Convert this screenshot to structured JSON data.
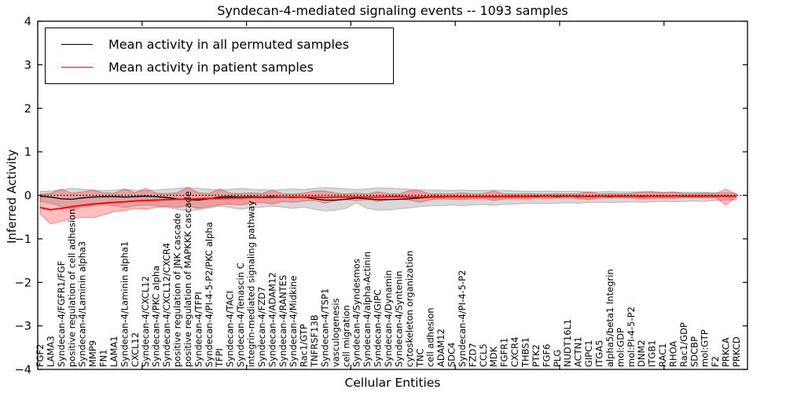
{
  "title": "Syndecan-4-mediated signaling events -- 1093 samples",
  "axes": {
    "ylabel": "Inferred Activity",
    "xlabel": "Cellular Entities",
    "yticks": [
      {
        "v": 4,
        "label": "4"
      },
      {
        "v": 3,
        "label": "3"
      },
      {
        "v": 2,
        "label": "2"
      },
      {
        "v": 1,
        "label": "1"
      },
      {
        "v": 0,
        "label": "0"
      },
      {
        "v": -1,
        "label": "−1"
      },
      {
        "v": -2,
        "label": "−2"
      },
      {
        "v": -3,
        "label": "−3"
      },
      {
        "v": -4,
        "label": "−4"
      }
    ]
  },
  "legend": {
    "entries": [
      {
        "label": "Mean activity in all permuted samples",
        "color": "#000000"
      },
      {
        "label": "Mean activity in patient samples",
        "color": "#ff0000"
      }
    ]
  },
  "chart_data": {
    "type": "line",
    "title": "Syndecan-4-mediated signaling events -- 1093 samples",
    "xlabel": "Cellular Entities",
    "ylabel": "Inferred Activity",
    "ylim": [
      -4,
      4
    ],
    "grid": false,
    "legend_position": "upper left",
    "zero_line": 0,
    "categories": [
      "FGF2",
      "LAMA3",
      "Syndecan-4/FGFR1/FGF",
      "positive regulation of cell adhesion",
      "Syndecan-4/Laminin alpha3",
      "MMP9",
      "FN1",
      "LAMA1",
      "Syndecan-4/Laminin alpha1",
      "CXCL12",
      "Syndecan-4/CXCL12",
      "Syndecan-4/PKC alpha",
      "Syndecan-4/CXCL12/CXCR4",
      "positive regulation of JNK cascade",
      "positive regulation of MAPKKK cascade",
      "Syndecan-4/TFPI",
      "Syndecan-4/PI-4-5-P2/PKC alpha",
      "TFPI",
      "Syndecan-4/TACI",
      "Syndecan-4/Tenascin C",
      "integrin-mediated signaling pathway",
      "Syndecan-4/FZD7",
      "Syndecan-4/ADAM12",
      "Syndecan-4/RANTES",
      "Syndecan-4/Midkine",
      "Rac1/GTP",
      "TNFRSF13B",
      "Syndecan-4/TSP1",
      "vasculogenesis",
      "cell migration",
      "Syndecan-4/Syndesmos",
      "Syndecan-4/alpha-Actinin",
      "Syndecan-4/GIPC",
      "Syndecan-4/Dynamin",
      "Syndecan-4/Syntenin",
      "cytoskeleton organization",
      "TNC",
      "cell adhesion",
      "ADAM12",
      "SDC4",
      "Syndecan-4/PI-4-5-P2",
      "FZD7",
      "CCL5",
      "MDK",
      "FGFR1",
      "CXCR4",
      "THBS1",
      "PTK2",
      "FGF6",
      "PLG",
      "NUDT16L1",
      "ACTN1",
      "GIPC1",
      "ITGA5",
      "alpha5/beta1 Integrin",
      "mol:GDP",
      "mol:PI-4-5-P2",
      "DNM2",
      "ITGB1",
      "RAC1",
      "RHOA",
      "Rac1/GDP",
      "SDCBP",
      "mol:GTP",
      "F2",
      "PRKCA",
      "PRKCD"
    ],
    "series": [
      {
        "name": "Mean activity in all permuted samples",
        "color": "#000000",
        "values": [
          -0.02,
          -0.04,
          -0.08,
          -0.09,
          -0.06,
          -0.04,
          -0.03,
          -0.03,
          -0.04,
          -0.03,
          -0.02,
          -0.03,
          -0.05,
          -0.08,
          -0.1,
          -0.11,
          -0.08,
          -0.04,
          -0.03,
          -0.04,
          -0.03,
          -0.04,
          -0.03,
          -0.04,
          -0.05,
          -0.04,
          -0.08,
          -0.11,
          -0.11,
          -0.09,
          -0.06,
          -0.08,
          -0.1,
          -0.1,
          -0.09,
          -0.08,
          -0.06,
          -0.04,
          -0.04,
          -0.03,
          -0.04,
          -0.03,
          -0.03,
          -0.04,
          -0.03,
          -0.03,
          -0.02,
          -0.03,
          -0.02,
          -0.03,
          -0.02,
          -0.03,
          -0.02,
          -0.02,
          -0.03,
          -0.02,
          -0.02,
          -0.03,
          -0.02,
          -0.02,
          -0.02,
          -0.02,
          -0.02,
          -0.01,
          -0.02,
          -0.01,
          -0.02
        ]
      },
      {
        "name": "Mean activity in patient samples",
        "color": "#ff0000",
        "values": [
          -0.28,
          -0.33,
          -0.3,
          -0.26,
          -0.23,
          -0.2,
          -0.18,
          -0.16,
          -0.15,
          -0.13,
          -0.12,
          -0.11,
          -0.1,
          -0.09,
          -0.09,
          -0.08,
          -0.07,
          -0.07,
          -0.06,
          -0.06,
          -0.05,
          -0.05,
          -0.05,
          -0.04,
          -0.04,
          -0.04,
          -0.04,
          -0.05,
          -0.04,
          -0.04,
          -0.04,
          -0.04,
          -0.04,
          -0.03,
          -0.03,
          -0.04,
          -0.04,
          -0.03,
          -0.03,
          -0.03,
          -0.03,
          -0.03,
          -0.03,
          -0.03,
          -0.03,
          -0.02,
          -0.03,
          -0.02,
          -0.02,
          -0.02,
          -0.02,
          -0.02,
          -0.03,
          -0.02,
          -0.02,
          -0.02,
          -0.02,
          -0.02,
          -0.02,
          -0.02,
          -0.02,
          -0.02,
          -0.02,
          -0.02,
          -0.02,
          -0.02,
          -0.02
        ]
      }
    ],
    "bands": [
      {
        "name": "permuted-range",
        "color": "rgba(120,120,120,0.28)",
        "edge": "rgba(120,120,120,0.45)",
        "upper": [
          0.09,
          0.1,
          0.13,
          0.16,
          0.14,
          0.12,
          0.11,
          0.12,
          0.14,
          0.12,
          0.11,
          0.12,
          0.14,
          0.16,
          0.18,
          0.16,
          0.14,
          0.12,
          0.14,
          0.16,
          0.14,
          0.13,
          0.12,
          0.13,
          0.15,
          0.13,
          0.16,
          0.18,
          0.17,
          0.15,
          0.13,
          0.15,
          0.17,
          0.17,
          0.15,
          0.14,
          0.13,
          0.12,
          0.12,
          0.11,
          0.12,
          0.11,
          0.11,
          0.12,
          0.11,
          0.1,
          0.1,
          0.09,
          0.1,
          0.09,
          0.09,
          0.09,
          0.08,
          0.08,
          0.09,
          0.08,
          0.08,
          0.08,
          0.07,
          0.07,
          0.08,
          0.07,
          0.07,
          0.07,
          0.06,
          0.06,
          0.05
        ],
        "lower": [
          -0.14,
          -0.18,
          -0.26,
          -0.32,
          -0.28,
          -0.24,
          -0.22,
          -0.24,
          -0.28,
          -0.24,
          -0.22,
          -0.24,
          -0.28,
          -0.32,
          -0.36,
          -0.33,
          -0.29,
          -0.25,
          -0.28,
          -0.32,
          -0.28,
          -0.27,
          -0.25,
          -0.27,
          -0.3,
          -0.27,
          -0.32,
          -0.36,
          -0.34,
          -0.3,
          -0.17,
          -0.3,
          -0.34,
          -0.34,
          -0.31,
          -0.29,
          -0.26,
          -0.24,
          -0.24,
          -0.22,
          -0.24,
          -0.22,
          -0.21,
          -0.23,
          -0.21,
          -0.2,
          -0.19,
          -0.18,
          -0.19,
          -0.18,
          -0.17,
          -0.18,
          -0.16,
          -0.16,
          -0.17,
          -0.16,
          -0.15,
          -0.16,
          -0.15,
          -0.14,
          -0.15,
          -0.14,
          -0.13,
          -0.14,
          -0.12,
          -0.11,
          -0.1
        ]
      },
      {
        "name": "patient-range",
        "color": "rgba(255,0,0,0.25)",
        "edge": "rgba(255,0,0,0.40)",
        "upper": [
          0.02,
          0.05,
          0.14,
          0.05,
          0.08,
          0.12,
          0.06,
          0.05,
          0.14,
          0.06,
          0.16,
          0.05,
          0.04,
          0.06,
          0.18,
          0.06,
          0.04,
          0.15,
          0.05,
          0.04,
          0.06,
          0.04,
          0.12,
          0.04,
          0.03,
          0.05,
          0.1,
          0.1,
          0.05,
          0.03,
          0.05,
          0.03,
          0.08,
          0.04,
          0.03,
          0.11,
          0.11,
          0.03,
          0.04,
          0.03,
          0.06,
          0.03,
          0.04,
          0.1,
          0.03,
          0.03,
          0.04,
          0.03,
          0.03,
          0.04,
          0.03,
          0.04,
          0.08,
          0.03,
          0.04,
          0.03,
          0.04,
          0.08,
          0.09,
          0.06,
          0.07,
          0.04,
          0.04,
          0.05,
          0.04,
          0.14,
          0.02
        ],
        "lower": [
          -0.42,
          -0.66,
          -0.6,
          -0.54,
          -0.5,
          -0.52,
          -0.45,
          -0.38,
          -0.35,
          -0.3,
          -0.32,
          -0.28,
          -0.25,
          -0.28,
          -0.24,
          -0.3,
          -0.26,
          -0.22,
          -0.2,
          -0.22,
          -0.18,
          -0.16,
          -0.2,
          -0.14,
          -0.16,
          -0.13,
          -0.12,
          -0.18,
          -0.12,
          -0.1,
          -0.12,
          -0.1,
          -0.14,
          -0.1,
          -0.09,
          -0.11,
          -0.16,
          -0.1,
          -0.08,
          -0.09,
          -0.1,
          -0.08,
          -0.07,
          -0.12,
          -0.08,
          -0.07,
          -0.08,
          -0.06,
          -0.07,
          -0.06,
          -0.06,
          -0.07,
          -0.1,
          -0.06,
          -0.06,
          -0.05,
          -0.06,
          -0.08,
          -0.07,
          -0.06,
          -0.07,
          -0.05,
          -0.05,
          -0.06,
          -0.05,
          -0.22,
          -0.03
        ]
      }
    ]
  }
}
